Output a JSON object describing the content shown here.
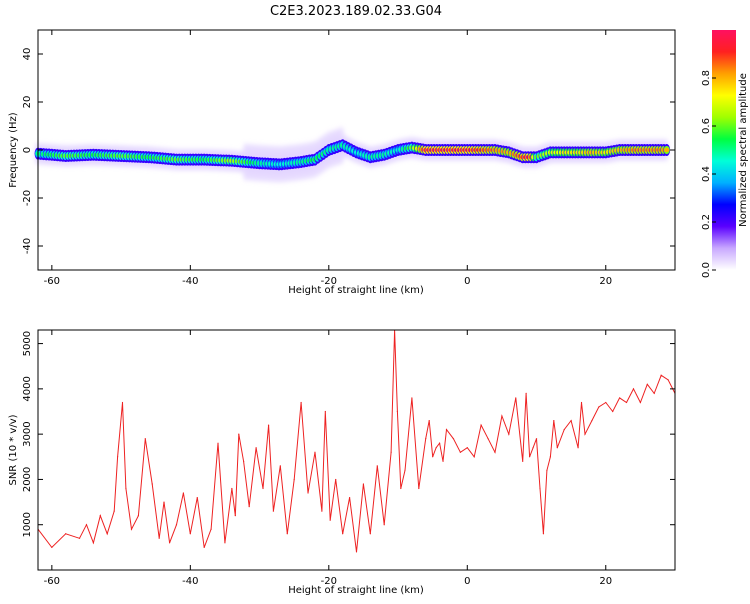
{
  "title": "C2E3.2023.189.02.33.G04",
  "chart_data": [
    {
      "type": "heatmap",
      "xlabel": "Height of straight line (km)",
      "ylabel": "Frequency (Hz)",
      "xlim": [
        -62,
        30
      ],
      "ylim": [
        -50,
        50
      ],
      "xticks": [
        -60,
        -40,
        -20,
        0,
        20
      ],
      "yticks": [
        -40,
        -20,
        0,
        20,
        40
      ],
      "colorbar": {
        "label": "Normalized spectral amplitude",
        "range": [
          0,
          1
        ],
        "ticks": [
          0.0,
          0.2,
          0.4,
          0.6,
          0.8
        ],
        "colors": [
          "#ffffff",
          "#c8a8ff",
          "#5a00ff",
          "#0000ff",
          "#00b0ff",
          "#00ffd8",
          "#00ff40",
          "#a0ff00",
          "#ffff00",
          "#ffa000",
          "#ff2020",
          "#ff1060"
        ]
      },
      "ridge": {
        "x": [
          -62,
          -58,
          -54,
          -50,
          -46,
          -42,
          -38,
          -34,
          -30,
          -27,
          -24,
          -22,
          -20,
          -18,
          -16,
          -14,
          -12,
          -10,
          -8,
          -6,
          -4,
          -2,
          0,
          2,
          4,
          6,
          8,
          9,
          10,
          12,
          14,
          16,
          18,
          20,
          22,
          24,
          26,
          28,
          29
        ],
        "freq": [
          -1.5,
          -2.5,
          -2,
          -2.5,
          -3,
          -4,
          -4,
          -4.5,
          -5.5,
          -6,
          -5,
          -4,
          0,
          2,
          -1,
          -3,
          -2,
          0,
          1,
          0,
          0,
          0,
          0,
          0,
          0,
          -1,
          -3,
          -3,
          -3,
          -1,
          -1,
          -1,
          -1,
          -1,
          0,
          0,
          0,
          0,
          0
        ],
        "amplitude": [
          0.5,
          0.6,
          0.55,
          0.6,
          0.55,
          0.6,
          0.55,
          0.65,
          0.5,
          0.45,
          0.5,
          0.55,
          0.5,
          0.5,
          0.45,
          0.5,
          0.5,
          0.45,
          0.6,
          0.95,
          0.95,
          0.95,
          0.95,
          0.9,
          0.85,
          0.8,
          0.9,
          0.95,
          0.6,
          0.7,
          0.75,
          0.75,
          0.8,
          0.75,
          0.8,
          0.85,
          0.85,
          0.85,
          0.8
        ]
      }
    },
    {
      "type": "line",
      "xlabel": "Height of straight line (km)",
      "ylabel": "SNR (10 * v/v)",
      "xlim": [
        -62,
        30
      ],
      "ylim": [
        0,
        5300
      ],
      "xticks": [
        -60,
        -40,
        -20,
        0,
        20
      ],
      "yticks": [
        1000,
        2000,
        3000,
        4000,
        5000
      ],
      "color": "#ee2222",
      "series": [
        {
          "x": [
            -62,
            -60,
            -58,
            -56,
            -55,
            -54,
            -53,
            -52,
            -51,
            -50.5,
            -49.8,
            -49.3,
            -48.5,
            -47.5,
            -46.5,
            -45.5,
            -44.5,
            -43.8,
            -43,
            -42,
            -41,
            -40,
            -39,
            -38,
            -37,
            -36,
            -35,
            -34,
            -33.5,
            -33,
            -32.3,
            -31.5,
            -30.5,
            -29.5,
            -28.7,
            -28,
            -27,
            -26,
            -25,
            -24,
            -23,
            -22,
            -21,
            -20.5,
            -19.8,
            -19,
            -18,
            -17,
            -16,
            -15,
            -14,
            -13,
            -12,
            -11,
            -10.5,
            -10.1,
            -9.6,
            -9,
            -8,
            -7,
            -6,
            -5.5,
            -5,
            -4.5,
            -4,
            -3.5,
            -3,
            -2,
            -1,
            0,
            1,
            2,
            3,
            4,
            5,
            6,
            7,
            8,
            8.5,
            9,
            9.5,
            10,
            10.5,
            11,
            11.5,
            12,
            12.5,
            13,
            14,
            15,
            16,
            16.5,
            17,
            18,
            19,
            20,
            21,
            22,
            23,
            24,
            25,
            26,
            27,
            28,
            29,
            30
          ],
          "y": [
            900,
            500,
            800,
            700,
            1000,
            600,
            1200,
            800,
            1300,
            2500,
            3700,
            1800,
            900,
            1200,
            2900,
            1900,
            700,
            1500,
            600,
            1000,
            1700,
            800,
            1600,
            500,
            900,
            2800,
            600,
            1800,
            1200,
            3000,
            2400,
            1400,
            2700,
            1800,
            3200,
            1300,
            2300,
            800,
            2000,
            3700,
            1700,
            2600,
            1300,
            3500,
            1100,
            2000,
            800,
            1600,
            400,
            1900,
            800,
            2300,
            1000,
            2600,
            5300,
            3500,
            1800,
            2200,
            3800,
            1800,
            2900,
            3300,
            2500,
            2700,
            2800,
            2400,
            3100,
            2900,
            2600,
            2700,
            2500,
            3200,
            2900,
            2600,
            3400,
            3000,
            3800,
            2400,
            3900,
            2500,
            2700,
            2900,
            1800,
            800,
            2200,
            2500,
            3300,
            2700,
            3100,
            3300,
            2700,
            3700,
            3000,
            3300,
            3600,
            3700,
            3500,
            3800,
            3700,
            4000,
            3700,
            4100,
            3900,
            4300,
            4200,
            3900
          ]
        }
      ]
    }
  ]
}
